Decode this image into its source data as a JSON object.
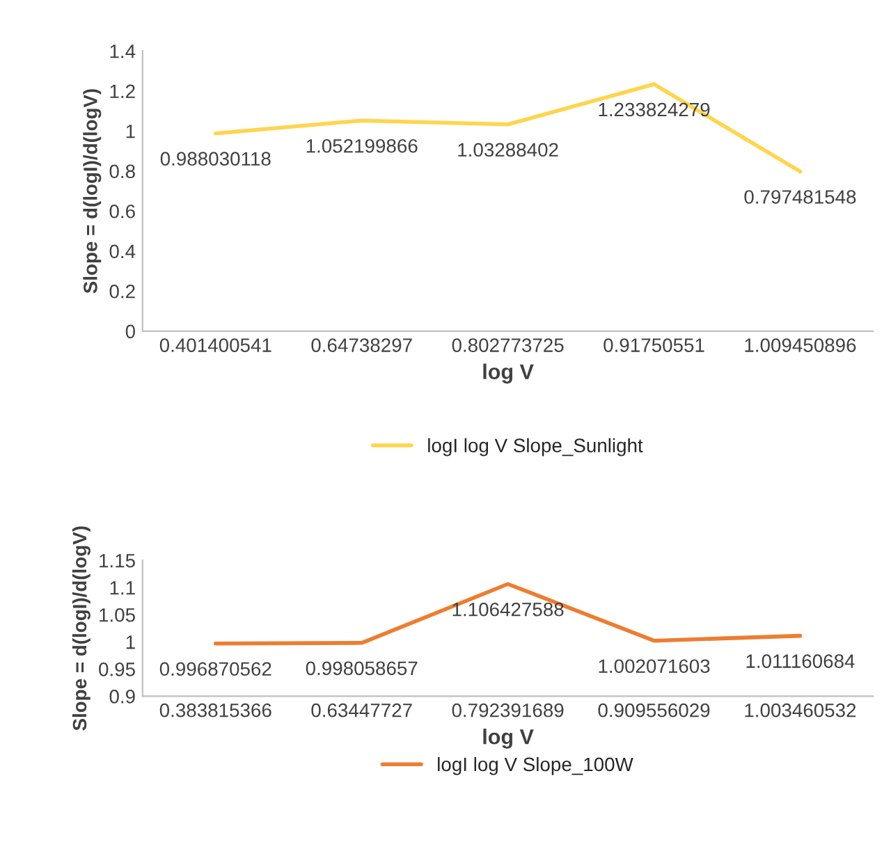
{
  "chart_data": [
    {
      "type": "line",
      "xlabel": "log V",
      "ylabel": "Slope = d(logI)/d(logV)",
      "categories": [
        "0.401400541",
        "0.64738297",
        "0.802773725",
        "0.91750551",
        "1.009450896"
      ],
      "series": [
        {
          "name": "logI log V Slope_Sunlight",
          "color": "#ffd54f",
          "values": [
            0.988030118,
            1.052199866,
            1.03288402,
            1.233824279,
            0.797481548
          ]
        }
      ],
      "ylim": [
        0,
        1.4
      ],
      "yticks": [
        0,
        0.2,
        0.4,
        0.6,
        0.8,
        1,
        1.2,
        1.4
      ],
      "data_labels": true,
      "legend": "bottom",
      "marker": "none",
      "line_style": "solid"
    },
    {
      "type": "line",
      "xlabel": "log V",
      "ylabel": "Slope = d(logI)/d(logV)",
      "categories": [
        "0.383815366",
        "0.63447727",
        "0.792391689",
        "0.909556029",
        "1.003460532"
      ],
      "series": [
        {
          "name": "logI log V Slope_100W",
          "color": "#ed7d31",
          "values": [
            0.996870562,
            0.998058657,
            1.106427588,
            1.002071603,
            1.011160684
          ]
        }
      ],
      "ylim": [
        0.9,
        1.15
      ],
      "yticks": [
        0.9,
        0.95,
        1,
        1.05,
        1.1,
        1.15
      ],
      "data_labels": true,
      "legend": "bottom",
      "marker": "none",
      "line_style": "solid"
    }
  ]
}
